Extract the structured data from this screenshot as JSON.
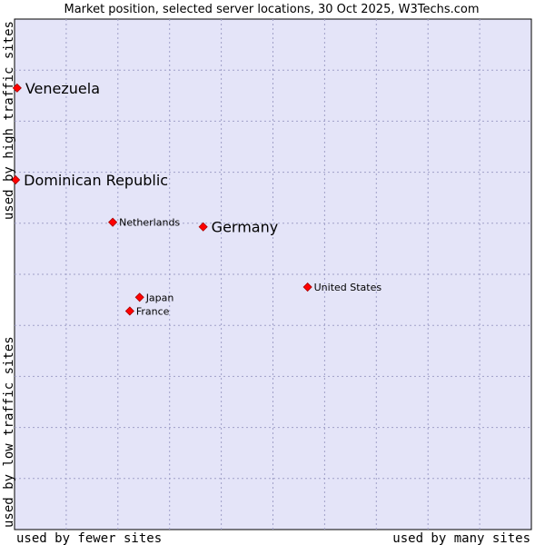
{
  "chart_data": {
    "type": "scatter",
    "title": "Market position, selected server locations, 30 Oct 2025, W3Techs.com",
    "xlabel_left": "used by fewer sites",
    "xlabel_right": "used by many sites",
    "ylabel_bottom": "used by low traffic sites",
    "ylabel_top": "used by high traffic sites",
    "xlim": [
      0,
      100
    ],
    "ylim": [
      0,
      100
    ],
    "grid": true,
    "colors": {
      "plot_background": "#e4e4f8",
      "grid": "#a0a0c8",
      "marker": "#ff0000",
      "marker_border": "#aa0000",
      "border": "#000000"
    },
    "points": [
      {
        "name": "Venezuela",
        "x": 0.5,
        "y": 86.5,
        "size": "large"
      },
      {
        "name": "Dominican Republic",
        "x": 0.2,
        "y": 68.5,
        "size": "large"
      },
      {
        "name": "Netherlands",
        "x": 19.0,
        "y": 60.2,
        "size": "small"
      },
      {
        "name": "Germany",
        "x": 36.5,
        "y": 59.3,
        "size": "large"
      },
      {
        "name": "United States",
        "x": 56.7,
        "y": 47.5,
        "size": "small"
      },
      {
        "name": "Japan",
        "x": 24.2,
        "y": 45.5,
        "size": "small"
      },
      {
        "name": "France",
        "x": 22.3,
        "y": 42.8,
        "size": "small"
      }
    ]
  }
}
